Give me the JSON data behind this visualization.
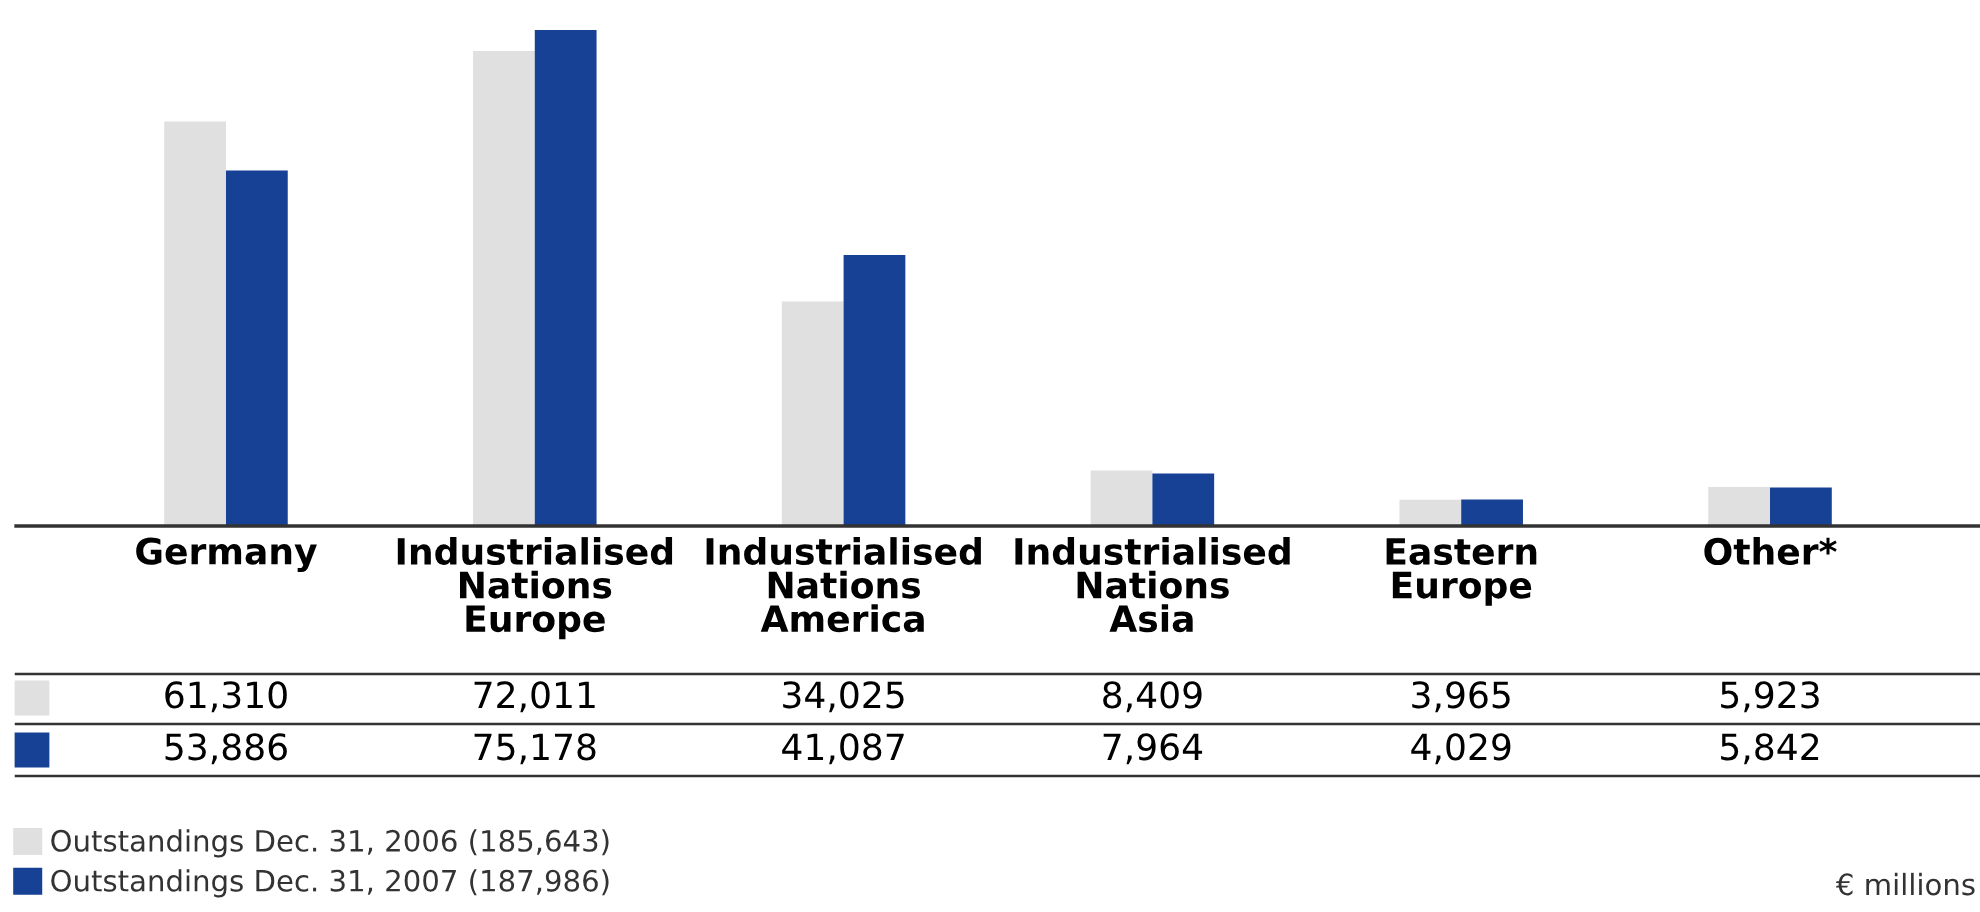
{
  "chart_data": {
    "type": "bar",
    "categories": [
      "Germany",
      "Industrialised Nations Europe",
      "Industrialised Nations America",
      "Industrialised Nations Asia",
      "Eastern Europe",
      "Other*"
    ],
    "series": [
      {
        "name": "Outstandings Dec. 31, 2006 (185,643)",
        "color": "#e0e0e0",
        "values": [
          61310,
          72011,
          34025,
          8409,
          3965,
          5923
        ],
        "value_labels": [
          "61,310",
          "72,011",
          "34,025",
          "8,409",
          "3,965",
          "5,923"
        ]
      },
      {
        "name": "Outstandings Dec. 31, 2007 (187,986)",
        "color": "#164194",
        "values": [
          53886,
          75178,
          41087,
          7964,
          4029,
          5842
        ],
        "value_labels": [
          "53,886",
          "75,178",
          "41,087",
          "7,964",
          "4,029",
          "5,842"
        ]
      }
    ],
    "legend": "bottom left",
    "grid": false,
    "annotations": [
      "€ millions"
    ]
  }
}
